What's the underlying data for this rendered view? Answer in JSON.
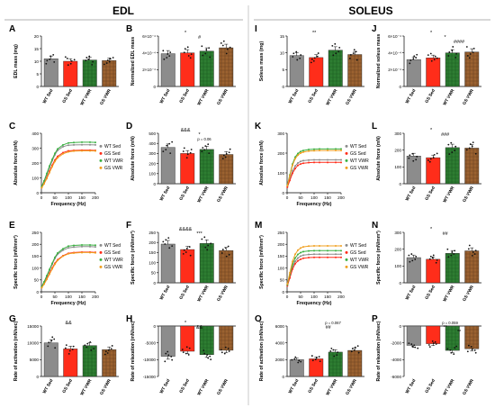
{
  "headers": {
    "left": "EDL",
    "right": "SOLEUS"
  },
  "colors": {
    "wt_sed": "#8c8c8c",
    "gs_sed": "#ff2d1a",
    "wt_vwr": "#2e7d32",
    "gs_vwr": "#9b6230",
    "gs_vwr_line": "#f0a020",
    "wt_vwr_line": "#3cb043"
  },
  "groups": [
    "WT Sed",
    "GS Sed",
    "WT VWR",
    "GS VWR"
  ],
  "chart_data": [
    {
      "id": "A",
      "type": "bar",
      "panel_label": "A",
      "ylabel": "EDL mass (mg)",
      "ylim": [
        0,
        20
      ],
      "yticks": [
        "0",
        "5",
        "10",
        "15",
        "20"
      ],
      "values": [
        11,
        10,
        10.5,
        10.3
      ],
      "annotations": []
    },
    {
      "id": "B",
      "type": "bar",
      "panel_label": "B",
      "ylabel": "Normalized EDL mass",
      "ylim": [
        0,
        0.0006
      ],
      "yticks": [
        "0",
        "2×10⁻⁴",
        "4×10⁻⁴",
        "6×10⁻⁴"
      ],
      "values": [
        0.00039,
        0.0004,
        0.00042,
        0.00046
      ],
      "annotations": [
        "*",
        "#"
      ]
    },
    {
      "id": "C",
      "type": "line",
      "panel_label": "C",
      "ylabel": "Absolute force (mN)",
      "xlabel": "Frequency (Hz)",
      "ylim": [
        0,
        400
      ],
      "yticks": [
        "0",
        "100",
        "200",
        "300",
        "400"
      ],
      "xlim": [
        0,
        200
      ],
      "xticks": [
        "0",
        "50",
        "100",
        "150",
        "200"
      ],
      "x": [
        1,
        10,
        20,
        30,
        40,
        50,
        60,
        80,
        100,
        120,
        150,
        180,
        200
      ],
      "series": [
        {
          "name": "WT Sed",
          "values": [
            40,
            75,
            120,
            170,
            215,
            255,
            285,
            310,
            320,
            322,
            323,
            323,
            322
          ]
        },
        {
          "name": "GS Sed",
          "values": [
            35,
            65,
            100,
            145,
            185,
            220,
            245,
            270,
            282,
            285,
            286,
            286,
            285
          ]
        },
        {
          "name": "WT VWR",
          "values": [
            42,
            80,
            130,
            180,
            225,
            265,
            295,
            322,
            335,
            338,
            340,
            340,
            339
          ]
        },
        {
          "name": "GS VWR",
          "values": [
            33,
            60,
            95,
            135,
            175,
            210,
            235,
            262,
            275,
            280,
            282,
            282,
            281
          ]
        }
      ]
    },
    {
      "id": "D",
      "type": "bar",
      "panel_label": "D",
      "ylabel": "Absolute force (mN)",
      "ylim": [
        0,
        500
      ],
      "yticks": [
        "0",
        "100",
        "200",
        "300",
        "400",
        "500"
      ],
      "values": [
        360,
        300,
        340,
        290
      ],
      "annotations": [
        "&&&",
        "*",
        "p = 0.06"
      ]
    },
    {
      "id": "E",
      "type": "line",
      "panel_label": "E",
      "ylabel": "Specific force (mN/mm²)",
      "xlabel": "Frequency (Hz)",
      "ylim": [
        0,
        250
      ],
      "yticks": [
        "0",
        "50",
        "100",
        "150",
        "200",
        "250"
      ],
      "xlim": [
        0,
        200
      ],
      "xticks": [
        "0",
        "50",
        "100",
        "150",
        "200"
      ],
      "x": [
        1,
        10,
        20,
        30,
        40,
        50,
        60,
        80,
        100,
        120,
        150,
        180,
        200
      ],
      "series": [
        {
          "name": "WT Sed",
          "values": [
            20,
            40,
            65,
            90,
            115,
            140,
            158,
            175,
            185,
            188,
            190,
            190,
            189
          ]
        },
        {
          "name": "GS Sed",
          "values": [
            18,
            34,
            55,
            78,
            100,
            120,
            135,
            152,
            162,
            165,
            167,
            167,
            166
          ]
        },
        {
          "name": "WT VWR",
          "values": [
            21,
            42,
            68,
            94,
            120,
            145,
            163,
            181,
            192,
            195,
            197,
            197,
            196
          ]
        },
        {
          "name": "GS VWR",
          "values": [
            17,
            32,
            52,
            74,
            96,
            116,
            132,
            150,
            160,
            163,
            165,
            165,
            164
          ]
        }
      ]
    },
    {
      "id": "F",
      "type": "bar",
      "panel_label": "F",
      "ylabel": "Specific force (mN/mm²)",
      "ylim": [
        0,
        250
      ],
      "yticks": [
        "0",
        "50",
        "100",
        "150",
        "200",
        "250"
      ],
      "values": [
        192,
        165,
        195,
        160
      ],
      "annotations": [
        "&&&&",
        "***"
      ]
    },
    {
      "id": "G",
      "type": "bar",
      "panel_label": "G",
      "ylabel": "Rate of activation (mN/sec)",
      "ylim": [
        0,
        15000
      ],
      "yticks": [
        "0",
        "5000",
        "10000",
        "15000"
      ],
      "values": [
        10000,
        8200,
        9200,
        8000
      ],
      "annotations": [
        "&&"
      ]
    },
    {
      "id": "H",
      "type": "bar",
      "panel_label": "H",
      "ylabel": "Rate of relaxation (mN/sec)",
      "ylim": [
        -15000,
        0
      ],
      "yticks": [
        "-15000",
        "-10000",
        "-5000",
        "0"
      ],
      "values": [
        -9000,
        -7500,
        -8500,
        -7200
      ],
      "annotations": [
        "*",
        "&&"
      ]
    },
    {
      "id": "I",
      "type": "bar",
      "panel_label": "I",
      "ylabel": "Soleus mass (mg)",
      "ylim": [
        0,
        15
      ],
      "yticks": [
        "0",
        "5",
        "10",
        "15"
      ],
      "values": [
        9.2,
        8.6,
        10.8,
        9.5
      ],
      "annotations": [
        "**"
      ]
    },
    {
      "id": "J",
      "type": "bar",
      "panel_label": "J",
      "ylabel": "Normalized soleus mass",
      "ylim": [
        0,
        0.0006
      ],
      "yticks": [
        "0",
        "2×10⁻⁴",
        "4×10⁻⁴",
        "6×10⁻⁴"
      ],
      "values": [
        0.00032,
        0.00034,
        0.0004,
        0.00041
      ],
      "annotations": [
        "*",
        "*",
        "####"
      ]
    },
    {
      "id": "K",
      "type": "line",
      "panel_label": "K",
      "ylabel": "Absolute force (mN)",
      "xlabel": "Frequency (Hz)",
      "ylim": [
        0,
        300
      ],
      "yticks": [
        "0",
        "100",
        "200",
        "300"
      ],
      "xlim": [
        0,
        200
      ],
      "xticks": [
        "0",
        "50",
        "100",
        "150",
        "200"
      ],
      "x": [
        1,
        10,
        20,
        30,
        40,
        50,
        60,
        80,
        100,
        120,
        150,
        180,
        200
      ],
      "series": [
        {
          "name": "WT Sed",
          "values": [
            30,
            70,
            110,
            135,
            150,
            158,
            162,
            165,
            166,
            166,
            166,
            166,
            166
          ]
        },
        {
          "name": "GS Sed",
          "values": [
            28,
            62,
            98,
            122,
            138,
            145,
            149,
            152,
            153,
            153,
            153,
            153,
            153
          ]
        },
        {
          "name": "WT VWR",
          "values": [
            38,
            90,
            145,
            180,
            198,
            208,
            213,
            218,
            220,
            221,
            221,
            221,
            221
          ]
        },
        {
          "name": "GS VWR",
          "values": [
            36,
            86,
            138,
            172,
            190,
            200,
            205,
            210,
            212,
            213,
            213,
            213,
            213
          ]
        }
      ]
    },
    {
      "id": "L",
      "type": "bar",
      "panel_label": "L",
      "ylabel": "Absolute force (mN)",
      "ylim": [
        0,
        300
      ],
      "yticks": [
        "0",
        "100",
        "200",
        "300"
      ],
      "values": [
        165,
        155,
        215,
        212
      ],
      "annotations": [
        "*",
        "###"
      ]
    },
    {
      "id": "M",
      "type": "line",
      "panel_label": "M",
      "ylabel": "Specific force (mN/mm²)",
      "xlabel": "Frequency (Hz)",
      "ylim": [
        0,
        250
      ],
      "yticks": [
        "0",
        "50",
        "100",
        "150",
        "200",
        "250"
      ],
      "xlim": [
        0,
        200
      ],
      "xticks": [
        "0",
        "50",
        "100",
        "150",
        "200"
      ],
      "x": [
        1,
        10,
        20,
        30,
        40,
        50,
        60,
        80,
        100,
        120,
        150,
        180,
        200
      ],
      "series": [
        {
          "name": "WT Sed",
          "values": [
            28,
            65,
            105,
            128,
            142,
            150,
            154,
            157,
            158,
            158,
            158,
            158,
            158
          ]
        },
        {
          "name": "GS Sed",
          "values": [
            25,
            58,
            95,
            118,
            130,
            137,
            141,
            144,
            145,
            145,
            145,
            145,
            145
          ]
        },
        {
          "name": "WT VWR",
          "values": [
            30,
            72,
            115,
            142,
            157,
            165,
            169,
            172,
            173,
            173,
            173,
            173,
            173
          ]
        },
        {
          "name": "GS VWR",
          "values": [
            33,
            80,
            128,
            158,
            175,
            184,
            189,
            192,
            193,
            193,
            193,
            193,
            193
          ]
        }
      ]
    },
    {
      "id": "N",
      "type": "bar",
      "panel_label": "N",
      "ylabel": "Specific force (mN/mm²)",
      "ylim": [
        0,
        300
      ],
      "yticks": [
        "0",
        "100",
        "200",
        "300"
      ],
      "values": [
        150,
        140,
        175,
        190
      ],
      "annotations": [
        "*",
        "##"
      ]
    },
    {
      "id": "O",
      "type": "bar",
      "panel_label": "O",
      "ylabel": "Rate of activation (mN/sec)",
      "ylim": [
        0,
        6000
      ],
      "yticks": [
        "0",
        "2000",
        "4000",
        "6000"
      ],
      "values": [
        2000,
        2100,
        2900,
        3100
      ],
      "annotations": [
        "p = 0.067",
        "##"
      ]
    },
    {
      "id": "P",
      "type": "bar",
      "panel_label": "P",
      "ylabel": "Rate of relaxation (mN/sec)",
      "ylim": [
        -6000,
        0
      ],
      "yticks": [
        "-6000",
        "-4000",
        "-2000",
        "0"
      ],
      "values": [
        -2300,
        -2100,
        -2900,
        -2700
      ],
      "annotations": [
        "p = 0.059",
        "**",
        "**"
      ]
    }
  ]
}
